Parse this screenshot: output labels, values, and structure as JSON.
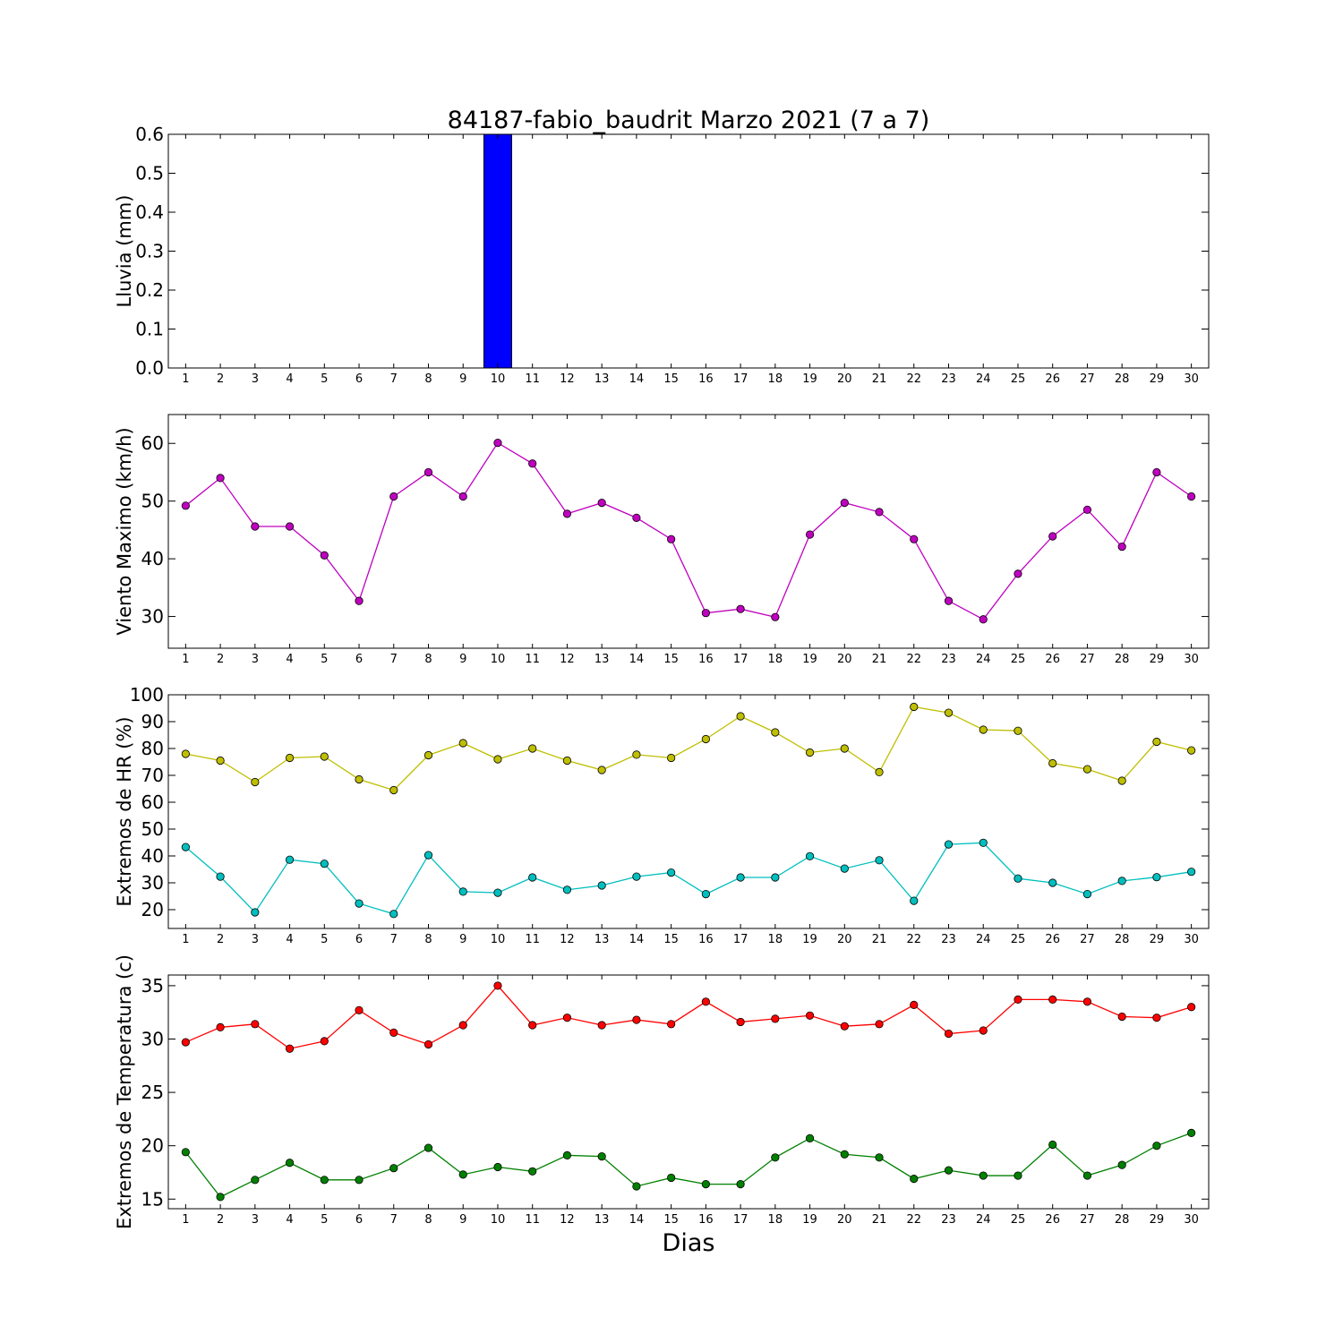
{
  "figure": {
    "title": "84187-fabio_baudrit Marzo 2021  (7 a 7)",
    "xlabel": "Dias"
  },
  "chart_data": [
    {
      "type": "bar",
      "ylabel": "Lluvia (mm)",
      "x": [
        1,
        2,
        3,
        4,
        5,
        6,
        7,
        8,
        9,
        10,
        11,
        12,
        13,
        14,
        15,
        16,
        17,
        18,
        19,
        20,
        21,
        22,
        23,
        24,
        25,
        26,
        27,
        28,
        29,
        30
      ],
      "ylim": [
        0,
        0.6
      ],
      "yticks": [
        0.0,
        0.1,
        0.2,
        0.3,
        0.4,
        0.5,
        0.6
      ],
      "ytick_labels": [
        "0.0",
        "0.1",
        "0.2",
        "0.3",
        "0.4",
        "0.5",
        "0.6"
      ],
      "series": [
        {
          "color": "#0000ff",
          "values": [
            0,
            0,
            0,
            0,
            0,
            0,
            0,
            0,
            0,
            0.6,
            0,
            0,
            0,
            0,
            0,
            0,
            0,
            0,
            0,
            0,
            0,
            0,
            0,
            0,
            0,
            0,
            0,
            0,
            0,
            0
          ]
        }
      ]
    },
    {
      "type": "line",
      "ylabel": "Viento Maximo (km/h)",
      "x": [
        1,
        2,
        3,
        4,
        5,
        6,
        7,
        8,
        9,
        10,
        11,
        12,
        13,
        14,
        15,
        16,
        17,
        18,
        19,
        20,
        21,
        22,
        23,
        24,
        25,
        26,
        27,
        28,
        29,
        30
      ],
      "ylim": [
        24.5,
        65
      ],
      "yticks": [
        30,
        40,
        50,
        60
      ],
      "ytick_labels": [
        "30",
        "40",
        "50",
        "60"
      ],
      "series": [
        {
          "color": "#bf00bf",
          "values": [
            49.2,
            54.0,
            45.6,
            45.6,
            40.6,
            32.7,
            50.8,
            55.0,
            50.8,
            60.1,
            56.5,
            47.8,
            49.7,
            47.1,
            43.4,
            30.6,
            31.3,
            29.9,
            44.2,
            49.7,
            48.1,
            43.4,
            32.7,
            29.5,
            37.4,
            43.9,
            48.5,
            42.1,
            55.0,
            50.8
          ]
        }
      ]
    },
    {
      "type": "line",
      "ylabel": "Extremos de HR (%)",
      "x": [
        1,
        2,
        3,
        4,
        5,
        6,
        7,
        8,
        9,
        10,
        11,
        12,
        13,
        14,
        15,
        16,
        17,
        18,
        19,
        20,
        21,
        22,
        23,
        24,
        25,
        26,
        27,
        28,
        29,
        30
      ],
      "ylim": [
        13,
        100
      ],
      "yticks": [
        20,
        30,
        40,
        50,
        60,
        70,
        80,
        90,
        100
      ],
      "ytick_labels": [
        "20",
        "30",
        "40",
        "50",
        "60",
        "70",
        "80",
        "90",
        "100"
      ],
      "series": [
        {
          "color": "#bfbf00",
          "values": [
            78,
            75.5,
            67.5,
            76.5,
            77,
            68.5,
            64.5,
            77.5,
            82,
            76,
            80,
            75.5,
            72,
            77.7,
            76.5,
            83.5,
            92,
            86,
            78.5,
            80,
            71.2,
            95.5,
            93.3,
            87,
            86.6,
            74.5,
            72.3,
            68,
            82.5,
            79.3
          ]
        },
        {
          "color": "#00bfbf",
          "values": [
            43.3,
            32.3,
            19,
            38.6,
            37.1,
            22.3,
            18.4,
            40.3,
            26.7,
            26.3,
            32,
            27.4,
            29,
            32.3,
            33.8,
            25.8,
            32,
            32,
            39.9,
            35.3,
            38.4,
            23.3,
            44.3,
            44.9,
            31.6,
            30,
            25.8,
            30.7,
            32.1,
            34.1
          ]
        }
      ]
    },
    {
      "type": "line",
      "ylabel": "Extremos de Temperatura (c)",
      "x": [
        1,
        2,
        3,
        4,
        5,
        6,
        7,
        8,
        9,
        10,
        11,
        12,
        13,
        14,
        15,
        16,
        17,
        18,
        19,
        20,
        21,
        22,
        23,
        24,
        25,
        26,
        27,
        28,
        29,
        30
      ],
      "ylim": [
        14.1,
        36
      ],
      "yticks": [
        15,
        20,
        25,
        30,
        35
      ],
      "ytick_labels": [
        "15",
        "20",
        "25",
        "30",
        "35"
      ],
      "series": [
        {
          "color": "#ff0000",
          "values": [
            29.7,
            31.1,
            31.4,
            29.1,
            29.8,
            32.7,
            30.6,
            29.5,
            31.3,
            35.0,
            31.3,
            32.0,
            31.3,
            31.8,
            31.4,
            33.5,
            31.6,
            31.9,
            32.2,
            31.2,
            31.4,
            33.2,
            30.5,
            30.8,
            33.7,
            33.7,
            33.5,
            32.1,
            32.0,
            33.0
          ]
        },
        {
          "color": "#008000",
          "values": [
            19.4,
            15.2,
            16.8,
            18.4,
            16.8,
            16.8,
            17.9,
            19.8,
            17.3,
            18.0,
            17.6,
            19.1,
            19.0,
            16.2,
            17.0,
            16.4,
            16.4,
            18.9,
            20.7,
            19.2,
            18.9,
            16.9,
            17.7,
            17.2,
            17.2,
            20.1,
            17.2,
            18.2,
            20.0,
            21.2
          ]
        }
      ]
    }
  ]
}
